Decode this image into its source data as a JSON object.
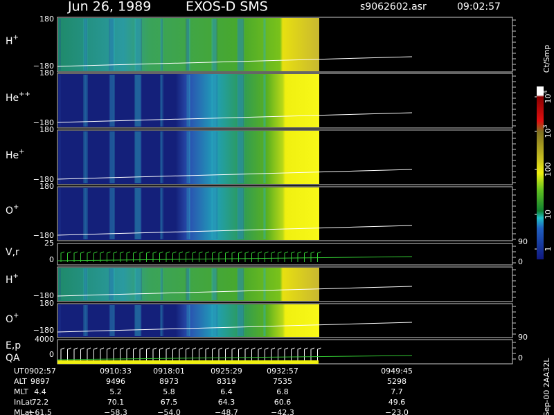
{
  "header": {
    "date": "Jun 26, 1989",
    "instrument": "EXOS-D SMS",
    "file": "s9062602.asr",
    "time": "09:02:57"
  },
  "panels": [
    {
      "label": "H",
      "sup": "+",
      "ticks": [
        "180",
        "−180"
      ]
    },
    {
      "label": "He",
      "sup": "++",
      "ticks": [
        "180",
        "−180"
      ]
    },
    {
      "label": "He",
      "sup": "+",
      "ticks": [
        "180",
        "−180"
      ]
    },
    {
      "label": "O",
      "sup": "+",
      "ticks": [
        "180",
        "−180"
      ]
    },
    {
      "label": "V,r",
      "ticks": [
        "25",
        "0"
      ],
      "right_ticks": [
        "90",
        "0"
      ]
    },
    {
      "label": "H",
      "sup": "+",
      "ticks": [
        "−180"
      ]
    },
    {
      "label": "O",
      "sup": "+",
      "ticks": [
        "180",
        "−180"
      ]
    },
    {
      "label": "E,p",
      "label2": "QA",
      "ticks": [
        "4000",
        "0"
      ],
      "right_ticks": [
        "90",
        "0"
      ]
    }
  ],
  "colorbar": {
    "title": "Ct/Smp",
    "ticks": [
      {
        "text": "10",
        "sup": "4"
      },
      {
        "text": "10",
        "sup": "3"
      },
      {
        "text": "100"
      },
      {
        "text": "10"
      },
      {
        "text": "1"
      }
    ]
  },
  "footer": {
    "rows": [
      {
        "label": "UT",
        "values": [
          "0902:57",
          "0910:33",
          "0918:01",
          "0925:29",
          "0932:57",
          "0949:45"
        ]
      },
      {
        "label": "ALT",
        "values": [
          "9897",
          "9496",
          "8973",
          "8319",
          "7535",
          "5298"
        ]
      },
      {
        "label": "MLT",
        "values": [
          "4.4",
          "5.2",
          "5.8",
          "6.4",
          "6.8",
          "7.7"
        ]
      },
      {
        "label": "InLat",
        "values": [
          "72.2",
          "70.1",
          "67.5",
          "64.3",
          "60.6",
          "49.6"
        ]
      },
      {
        "label": "MLat",
        "values": [
          "−61.5",
          "−58.3",
          "−54.0",
          "−48.7",
          "−42.3",
          "−23.0"
        ]
      }
    ]
  },
  "stamp": "Sep-00 2AA32L"
}
